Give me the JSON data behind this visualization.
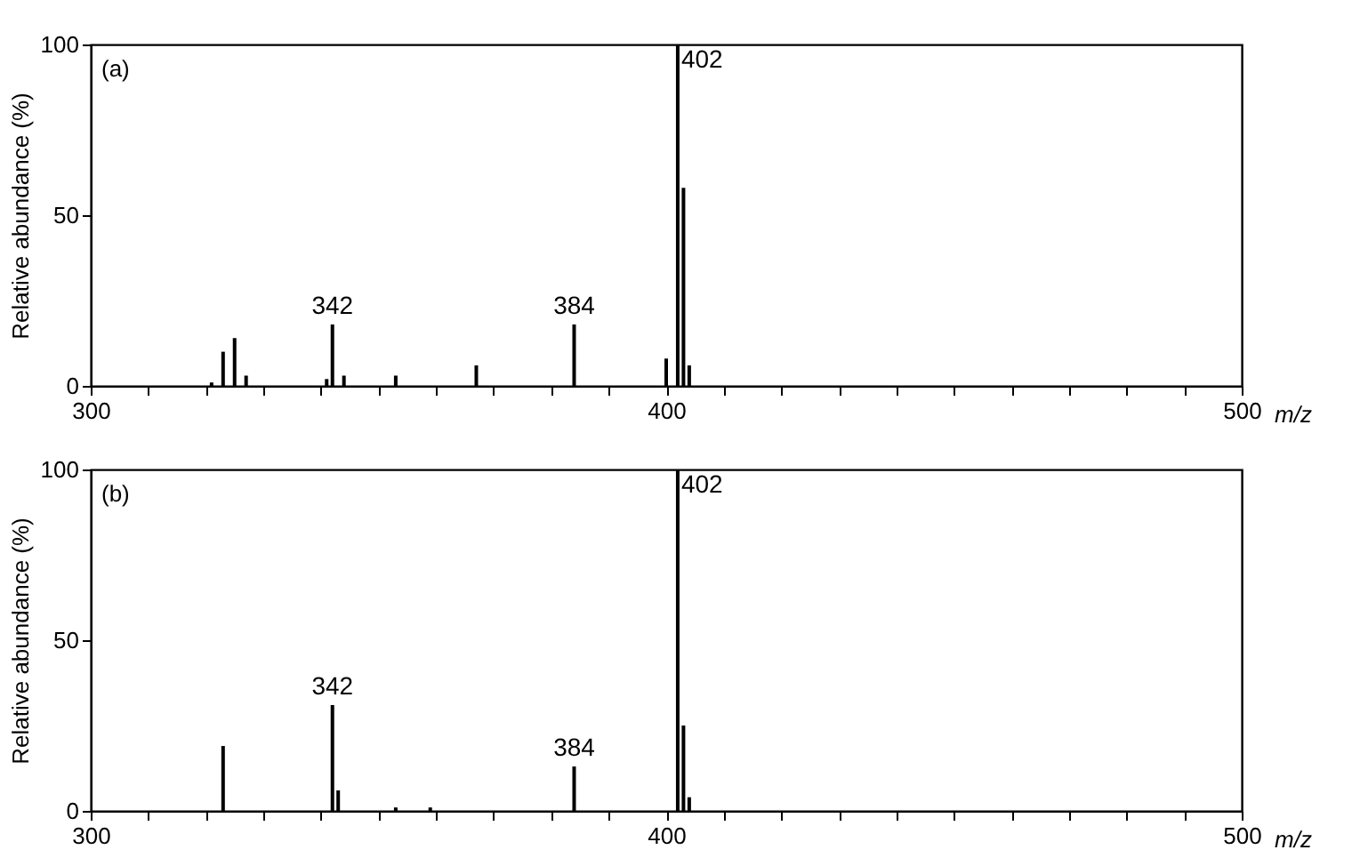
{
  "chart_data": [
    {
      "type": "bar",
      "annotations": [
        "(a)",
        {
          "text": "342",
          "x": 342,
          "y": 18
        },
        {
          "text": "384",
          "x": 384,
          "y": 18
        },
        {
          "text": "402",
          "x": 402,
          "y": 100
        }
      ],
      "xlabel": "m/z",
      "ylabel": "Relative abundance (%)",
      "x": [
        321,
        323,
        325,
        327,
        341,
        342,
        344,
        353,
        367,
        384,
        400,
        402,
        403,
        404
      ],
      "series": [
        {
          "color": "#000000",
          "values": [
            1,
            10,
            14,
            3,
            2,
            18,
            3,
            3,
            6,
            18,
            8,
            100,
            58,
            6
          ]
        }
      ],
      "xlim": [
        300,
        500
      ],
      "ylim": [
        0,
        100
      ],
      "xticks": [
        300,
        {
          "value": 310,
          "label": null
        },
        {
          "value": 320,
          "label": null
        },
        {
          "value": 330,
          "label": null
        },
        {
          "value": 340,
          "label": null
        },
        {
          "value": 350,
          "label": null
        },
        {
          "value": 360,
          "label": null
        },
        {
          "value": 370,
          "label": null
        },
        {
          "value": 380,
          "label": null
        },
        {
          "value": 390,
          "label": null
        },
        400,
        {
          "value": 410,
          "label": null
        },
        {
          "value": 420,
          "label": null
        },
        {
          "value": 430,
          "label": null
        },
        {
          "value": 440,
          "label": null
        },
        {
          "value": 450,
          "label": null
        },
        {
          "value": 460,
          "label": null
        },
        {
          "value": 470,
          "label": null
        },
        {
          "value": 480,
          "label": null
        },
        {
          "value": 490,
          "label": null
        },
        500
      ],
      "yticks": [
        0,
        50,
        100
      ],
      "grid": false
    },
    {
      "type": "bar",
      "annotations": [
        "(b)",
        {
          "text": "342",
          "x": 342,
          "y": 31
        },
        {
          "text": "384",
          "x": 384,
          "y": 13
        },
        {
          "text": "402",
          "x": 402,
          "y": 100
        }
      ],
      "xlabel": "m/z",
      "ylabel": "Relative abundance (%)",
      "x": [
        323,
        342,
        343,
        353,
        359,
        384,
        402,
        403,
        404
      ],
      "series": [
        {
          "color": "#000000",
          "values": [
            19,
            31,
            6,
            1,
            1,
            13,
            100,
            25,
            4
          ]
        }
      ],
      "xlim": [
        300,
        500
      ],
      "ylim": [
        0,
        100
      ],
      "xticks": [
        300,
        {
          "value": 310,
          "label": null
        },
        {
          "value": 320,
          "label": null
        },
        {
          "value": 330,
          "label": null
        },
        {
          "value": 340,
          "label": null
        },
        {
          "value": 350,
          "label": null
        },
        {
          "value": 360,
          "label": null
        },
        {
          "value": 370,
          "label": null
        },
        {
          "value": 380,
          "label": null
        },
        {
          "value": 390,
          "label": null
        },
        400,
        {
          "value": 410,
          "label": null
        },
        {
          "value": 420,
          "label": null
        },
        {
          "value": 430,
          "label": null
        },
        {
          "value": 440,
          "label": null
        },
        {
          "value": 450,
          "label": null
        },
        {
          "value": 460,
          "label": null
        },
        {
          "value": 470,
          "label": null
        },
        {
          "value": 480,
          "label": null
        },
        {
          "value": 490,
          "label": null
        },
        500
      ],
      "yticks": [
        0,
        50,
        100
      ],
      "grid": false
    }
  ]
}
